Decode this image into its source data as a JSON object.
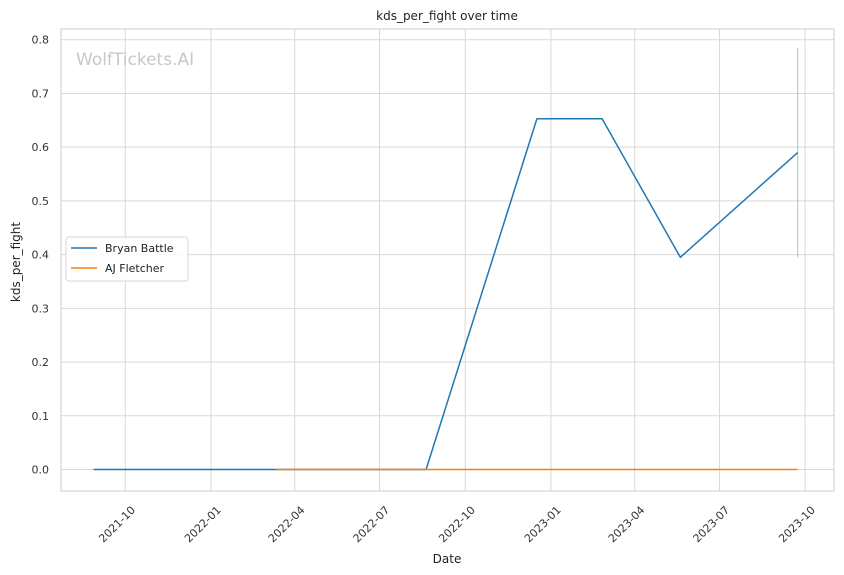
{
  "chart_data": {
    "type": "line",
    "title": "kds_per_fight over time",
    "xlabel": "Date",
    "ylabel": "kds_per_fight",
    "xlim": [
      "2021-07-24",
      "2023-11-01"
    ],
    "ylim": [
      -0.04,
      0.82
    ],
    "x_ticks": [
      "2021-10-01",
      "2022-01-01",
      "2022-04-01",
      "2022-07-01",
      "2022-10-01",
      "2023-01-01",
      "2023-04-01",
      "2023-07-01",
      "2023-10-01"
    ],
    "x_tick_labels": [
      "2021-10",
      "2022-01",
      "2022-04",
      "2022-07",
      "2022-10",
      "2023-01",
      "2023-04",
      "2023-07",
      "2023-10"
    ],
    "y_ticks": [
      0.0,
      0.1,
      0.2,
      0.3,
      0.4,
      0.5,
      0.6,
      0.7,
      0.8
    ],
    "y_tick_labels": [
      "0.0",
      "0.1",
      "0.2",
      "0.3",
      "0.4",
      "0.5",
      "0.6",
      "0.7",
      "0.8"
    ],
    "grid": true,
    "legend_position": "center-left",
    "series": [
      {
        "name": "Bryan Battle",
        "color": "#1f77b4",
        "x": [
          "2021-08-28",
          "2022-08-20",
          "2022-12-17",
          "2023-02-25",
          "2023-05-20",
          "2023-09-23"
        ],
        "y": [
          0.0,
          0.0,
          0.653,
          0.653,
          0.395,
          0.59
        ]
      },
      {
        "name": "AJ Fletcher",
        "color": "#ff7f0e",
        "x": [
          "2022-03-12",
          "2022-08-20",
          "2023-09-23"
        ],
        "y": [
          0.0,
          0.0,
          0.0
        ]
      }
    ],
    "annotations": [
      {
        "x": "2023-09-23",
        "y_from": 0.395,
        "y_to": 0.785,
        "color": "#8fd3b8"
      }
    ],
    "watermark": "WolfTickets.AI"
  }
}
